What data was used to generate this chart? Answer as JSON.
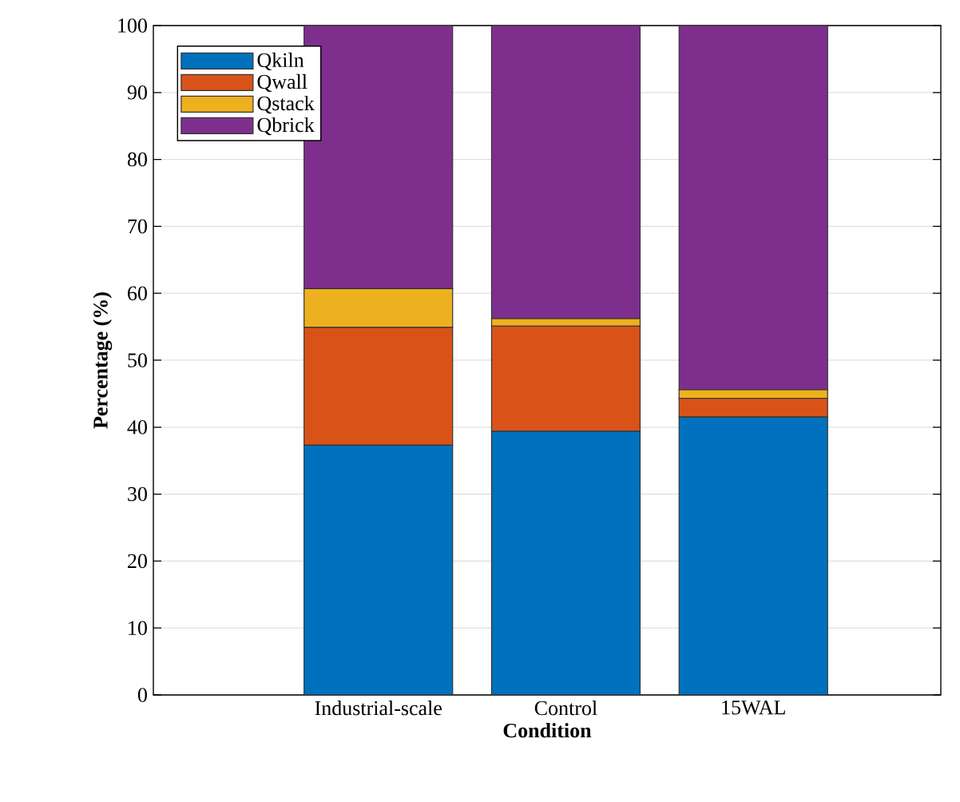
{
  "chart_data": {
    "type": "bar",
    "stacked": true,
    "xlabel": "Condition",
    "ylabel": "Percentage (%)",
    "categories": [
      "Industrial-scale",
      "Control",
      "15WAL"
    ],
    "series": [
      {
        "name": "Qkiln",
        "color": "#0072bd",
        "values": [
          37.3,
          39.4,
          41.5
        ]
      },
      {
        "name": "Qwall",
        "color": "#d95319",
        "values": [
          17.6,
          15.7,
          2.8
        ]
      },
      {
        "name": "Qstack",
        "color": "#edb120",
        "values": [
          5.8,
          1.1,
          1.3
        ]
      },
      {
        "name": "Qbrick",
        "color": "#7e2f8e",
        "values": [
          39.3,
          43.8,
          54.4
        ]
      }
    ],
    "ylim": [
      0,
      100
    ],
    "yticks": [
      0,
      10,
      20,
      30,
      40,
      50,
      60,
      70,
      80,
      90,
      100
    ],
    "grid": "y",
    "legend": "top left"
  }
}
